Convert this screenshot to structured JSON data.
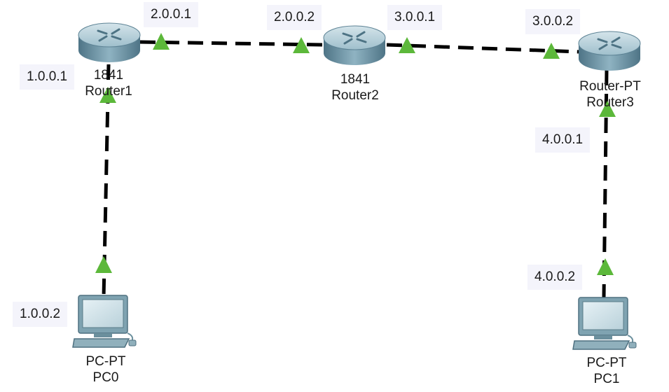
{
  "devices": {
    "router1": {
      "model": "1841",
      "name": "Router1"
    },
    "router2": {
      "model": "1841",
      "name": "Router2"
    },
    "router3": {
      "model": "Router-PT",
      "name": "Router3"
    },
    "pc0": {
      "model": "PC-PT",
      "name": "PC0"
    },
    "pc1": {
      "model": "PC-PT",
      "name": "PC1"
    }
  },
  "ip_labels": {
    "r1_lan": "1.0.0.1",
    "r1_wan": "2.0.0.1",
    "r2_left": "2.0.0.2",
    "r2_right": "3.0.0.1",
    "r3_wan": "3.0.0.2",
    "r3_lan": "4.0.0.1",
    "pc0": "1.0.0.2",
    "pc1": "4.0.0.2"
  },
  "colors": {
    "link": "#000000",
    "link_up": "#5cb83a",
    "router_body": "#6f97a8",
    "monitor": "#7fa3b1"
  }
}
